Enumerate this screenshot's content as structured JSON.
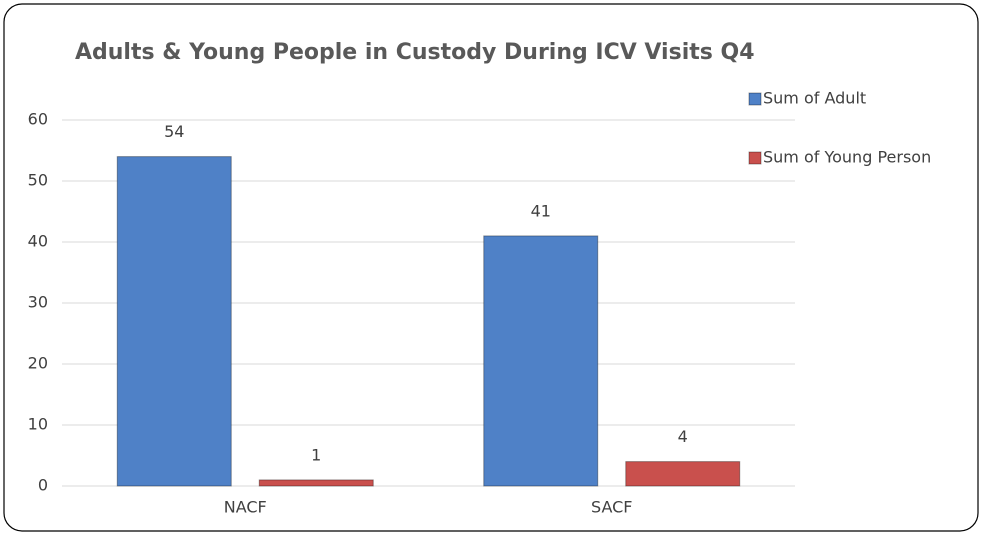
{
  "chart_data": {
    "type": "bar",
    "title": "Adults & Young People in Custody During ICV Visits Q4",
    "categories": [
      "NACF",
      "SACF"
    ],
    "series": [
      {
        "name": "Sum of Adult",
        "color": "#4f81c7",
        "values": [
          54,
          41
        ]
      },
      {
        "name": "Sum of Young Person",
        "color": "#c9504d",
        "values": [
          1,
          4
        ]
      }
    ],
    "ylim": [
      0,
      60
    ],
    "yticks": [
      0,
      10,
      20,
      30,
      40,
      50,
      60
    ],
    "grid": true,
    "legend": "right"
  }
}
